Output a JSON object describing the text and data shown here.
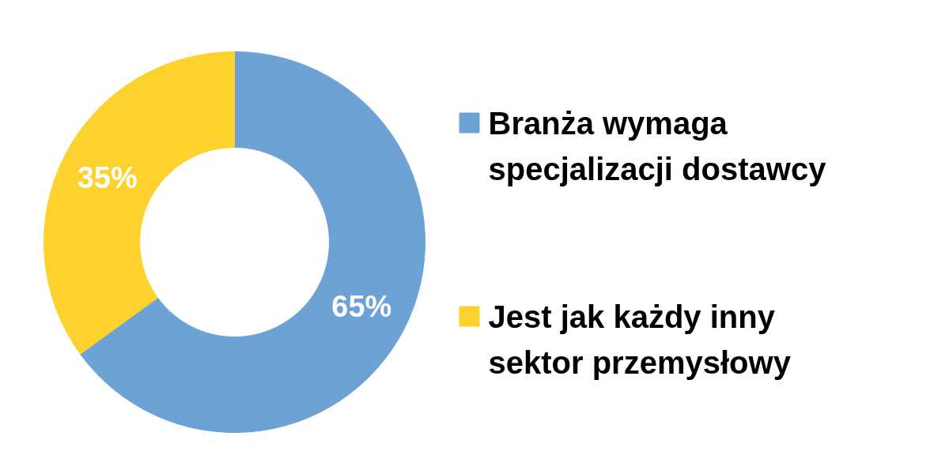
{
  "chart_data": {
    "type": "donut",
    "categories": [
      "Branża wymaga specjalizacji dostawcy",
      "Jest jak każdy inny sektor przemysłowy"
    ],
    "values": [
      65,
      35
    ],
    "colors": [
      "#6ca2d4",
      "#fdd22e"
    ],
    "value_labels": [
      "65%",
      "35%"
    ],
    "legend": "right"
  }
}
